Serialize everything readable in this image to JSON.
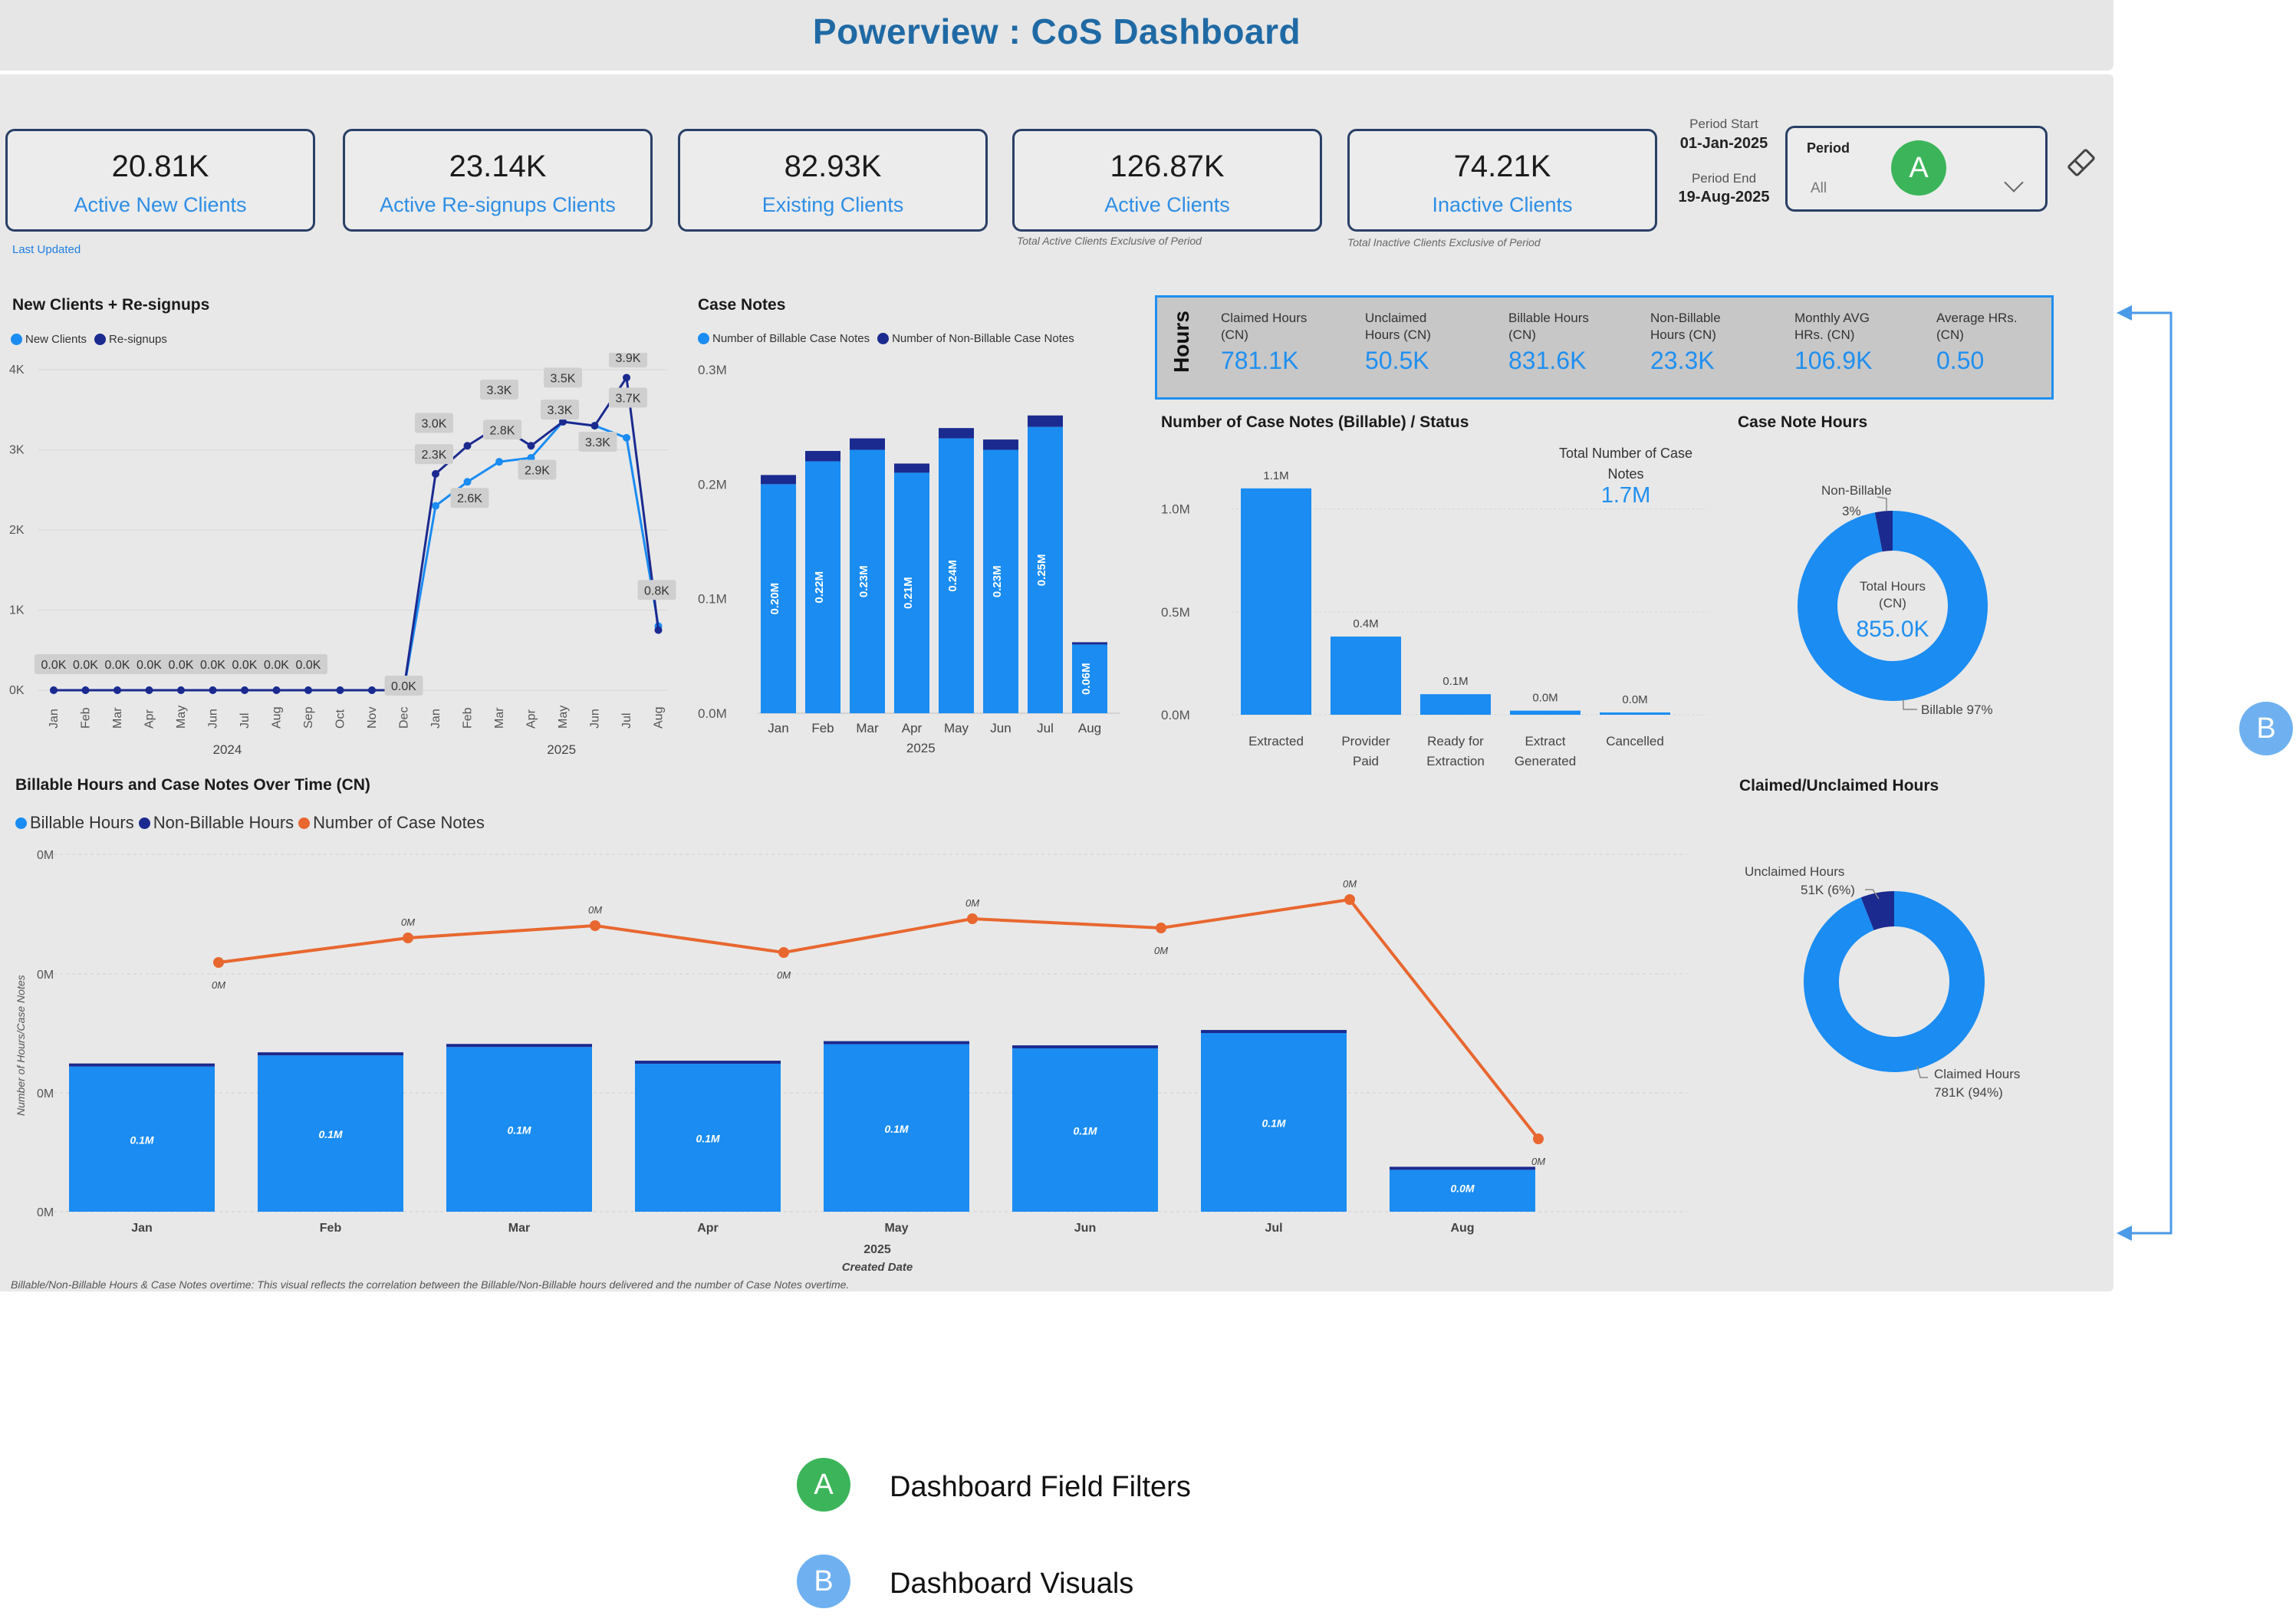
{
  "title": "Powerview : CoS Dashboard",
  "kpis": [
    {
      "value": "20.81K",
      "label": "Active New Clients"
    },
    {
      "value": "23.14K",
      "label": "Active Re-signups Clients"
    },
    {
      "value": "82.93K",
      "label": "Existing Clients"
    },
    {
      "value": "126.87K",
      "label": "Active Clients"
    },
    {
      "value": "74.21K",
      "label": "Inactive Clients"
    }
  ],
  "last_updated": "Last Updated",
  "active_note": "Total Active Clients Exclusive of Period",
  "inactive_note": "Total Inactive Clients Exclusive of Period",
  "period": {
    "start_label": "Period Start",
    "start_value": "01-Jan-2025",
    "end_label": "Period End",
    "end_value": "19-Aug-2025",
    "filter_label": "Period",
    "filter_value": "All"
  },
  "eraser_icon": "eraser-icon",
  "hours_panel": {
    "title": "Hours",
    "stats": [
      {
        "label1": "Claimed Hours",
        "label2": "(CN)",
        "value": "781.1K"
      },
      {
        "label1": "Unclaimed",
        "label2": "Hours (CN)",
        "value": "50.5K"
      },
      {
        "label1": "Billable Hours",
        "label2": "(CN)",
        "value": "831.6K"
      },
      {
        "label1": "Non-Billable",
        "label2": "Hours (CN)",
        "value": "23.3K"
      },
      {
        "label1": "Monthly AVG",
        "label2": "HRs. (CN)",
        "value": "106.9K"
      },
      {
        "label1": "Average HRs.",
        "label2": "(CN)",
        "value": "0.50"
      }
    ]
  },
  "colors": {
    "light_blue": "#1a8cf2",
    "dark_blue": "#1b2a8f",
    "orange": "#e8672f",
    "green": "#3cb55a",
    "badge_blue": "#6fb1f0"
  },
  "chart_data": [
    {
      "id": "new_clients",
      "type": "line",
      "title": "New Clients + Re-signups",
      "x": [
        "Jan",
        "Feb",
        "Mar",
        "Apr",
        "May",
        "Jun",
        "Jul",
        "Aug",
        "Sep",
        "Oct",
        "Nov",
        "Dec",
        "Jan",
        "Feb",
        "Mar",
        "Apr",
        "May",
        "Jun",
        "Jul",
        "Aug"
      ],
      "year_labels": [
        "2024",
        "2025"
      ],
      "series": [
        {
          "name": "New Clients",
          "values": [
            0,
            0,
            0,
            0,
            0,
            0,
            0,
            0,
            0,
            0,
            0,
            0,
            2300,
            2600,
            2850,
            2900,
            3350,
            3300,
            3150,
            800
          ]
        },
        {
          "name": "Re-signups",
          "values": [
            0,
            0,
            0,
            0,
            0,
            0,
            0,
            0,
            0,
            0,
            0,
            0,
            2700,
            3050,
            3300,
            3050,
            3350,
            3300,
            3900,
            750
          ]
        }
      ],
      "data_labels": [
        "0.0K",
        "0.0K",
        "0.0K",
        "0.0K",
        "0.0K",
        "0.0K",
        "0.0K",
        "0.0K",
        "0.0K",
        "3.0K",
        "2.3K",
        "2.6K",
        "3.3K",
        "2.8K",
        "2.9K",
        "3.5K",
        "3.3K",
        "3.3K",
        "3.9K",
        "3.7K",
        "0.8K",
        "0.0K"
      ],
      "y_ticks": [
        "0K",
        "1K",
        "2K",
        "3K",
        "4K"
      ],
      "ylim": [
        0,
        4000
      ]
    },
    {
      "id": "case_notes",
      "type": "bar",
      "title": "Case Notes",
      "categories": [
        "Jan",
        "Feb",
        "Mar",
        "Apr",
        "May",
        "Jun",
        "Jul",
        "Aug"
      ],
      "x_title": "2025",
      "series": [
        {
          "name": "Number of Billable Case Notes",
          "values": [
            0.2,
            0.22,
            0.23,
            0.21,
            0.24,
            0.23,
            0.25,
            0.06
          ]
        },
        {
          "name": "Number of Non-Billable Case Notes",
          "values": [
            0.008,
            0.009,
            0.01,
            0.008,
            0.009,
            0.009,
            0.01,
            0.002
          ]
        }
      ],
      "bar_labels": [
        "0.20M",
        "0.22M",
        "0.23M",
        "0.21M",
        "0.24M",
        "0.23M",
        "0.25M",
        "0.06M"
      ],
      "y_ticks": [
        "0.0M",
        "0.1M",
        "0.2M",
        "0.3M"
      ],
      "ylim": [
        0,
        0.3
      ]
    },
    {
      "id": "case_notes_status",
      "type": "bar",
      "title": "Number of Case Notes (Billable) / Status",
      "categories": [
        "Extracted",
        "Provider Paid",
        "Ready for Extraction",
        "Extract Generated",
        "Cancelled"
      ],
      "values": [
        1.1,
        0.38,
        0.1,
        0.02,
        0.005
      ],
      "bar_labels": [
        "1.1M",
        "0.4M",
        "0.1M",
        "0.0M",
        "0.0M"
      ],
      "y_ticks": [
        "0.0M",
        "0.5M",
        "1.0M"
      ],
      "ylim": [
        0,
        1.2
      ],
      "total_label": "Total Number of Case Notes",
      "total_value": "1.7M"
    },
    {
      "id": "case_note_hours",
      "type": "pie",
      "title": "Case Note Hours",
      "slices": [
        {
          "label": "Billable",
          "value": 97,
          "text": "Billable 97%"
        },
        {
          "label": "Non-Billable",
          "value": 3,
          "text": "3%"
        }
      ],
      "center_label": "Total Hours (CN)",
      "center_value": "855.0K"
    },
    {
      "id": "billable_hours_over_time",
      "type": "bar",
      "title": "Billable Hours and Case Notes Over Time (CN)",
      "categories": [
        "Jan",
        "Feb",
        "Mar",
        "Apr",
        "May",
        "Jun",
        "Jul",
        "Aug"
      ],
      "x_title": "2025",
      "x_axis_title": "Created Date",
      "y_axis_title": "Number of Hours/Case Notes",
      "series": [
        {
          "name": "Billable Hours",
          "values": [
            0.104,
            0.112,
            0.118,
            0.106,
            0.12,
            0.117,
            0.128,
            0.03
          ]
        },
        {
          "name": "Non-Billable Hours",
          "values": [
            0.003,
            0.003,
            0.003,
            0.003,
            0.003,
            0.003,
            0.003,
            0.001
          ]
        },
        {
          "name": "Number of Case Notes",
          "values": [
            0.21,
            0.23,
            0.24,
            0.22,
            0.245,
            0.237,
            0.26,
            0.064
          ]
        }
      ],
      "bar_labels": [
        "0.1M",
        "0.1M",
        "0.1M",
        "0.1M",
        "0.1M",
        "0.1M",
        "0.1M",
        "0.0M"
      ],
      "line_labels": [
        "0M",
        "0M",
        "0M",
        "0M",
        "0M",
        "0M",
        "0M",
        "0M"
      ],
      "y_ticks": [
        "0M",
        "0M",
        "0M",
        "0M"
      ],
      "footnote": "Billable/Non-Billable Hours & Case Notes overtime: This visual reflects the correlation between the Billable/Non-Billable hours delivered and the number of Case Notes overtime."
    },
    {
      "id": "claimed_unclaimed",
      "type": "pie",
      "title": "Claimed/Unclaimed Hours",
      "slices": [
        {
          "label": "Claimed Hours",
          "value": 94,
          "text1": "Claimed Hours",
          "text2": "781K (94%)"
        },
        {
          "label": "Unclaimed Hours",
          "value": 6,
          "text1": "Unclaimed Hours",
          "text2": "51K (6%)"
        }
      ]
    }
  ],
  "legend_key": [
    {
      "badge": "A",
      "text": "Dashboard Field Filters"
    },
    {
      "badge": "B",
      "text": "Dashboard Visuals"
    }
  ]
}
